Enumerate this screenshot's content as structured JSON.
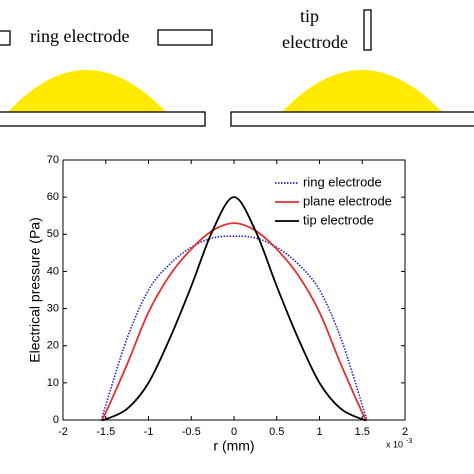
{
  "schematic": {
    "ring_label": "ring electrode",
    "tip_label_1": "tip",
    "tip_label_2": "electrode"
  },
  "chart_data": {
    "type": "line",
    "xlabel": "r (mm)",
    "ylabel": "Electrical pressure (Pa)",
    "x_multiplier_base": "x 10",
    "x_multiplier_exponent": "-3",
    "x": [
      -1.55,
      -1.5,
      -1.25,
      -1,
      -0.75,
      -0.5,
      -0.25,
      0,
      0.25,
      0.5,
      0.75,
      1,
      1.25,
      1.5,
      1.55
    ],
    "series": [
      {
        "name": "ring electrode",
        "color": "#2222cc",
        "dash": "dotted",
        "values": [
          0,
          4,
          22,
          35,
          42,
          46.5,
          49,
          49.5,
          49,
          46.5,
          42,
          35,
          22,
          4,
          0
        ]
      },
      {
        "name": "plane electrode",
        "color": "#e03030",
        "dash": "solid",
        "values": [
          0,
          2,
          15,
          29,
          39,
          46,
          51,
          53,
          51,
          46,
          39,
          29,
          15,
          2,
          0
        ]
      },
      {
        "name": "tip electrode",
        "color": "#000000",
        "dash": "solid",
        "values": [
          0,
          0.2,
          3,
          10,
          22,
          36,
          51,
          60,
          51,
          36,
          22,
          10,
          3,
          0.2,
          0
        ]
      }
    ],
    "xlim": [
      -2,
      2
    ],
    "ylim": [
      0,
      70
    ],
    "xticks": [
      -2,
      -1.5,
      -1,
      -0.5,
      0,
      0.5,
      1,
      1.5,
      2
    ],
    "yticks": [
      0,
      10,
      20,
      30,
      40,
      50,
      60,
      70
    ],
    "legend": "upper right",
    "grid": false
  }
}
